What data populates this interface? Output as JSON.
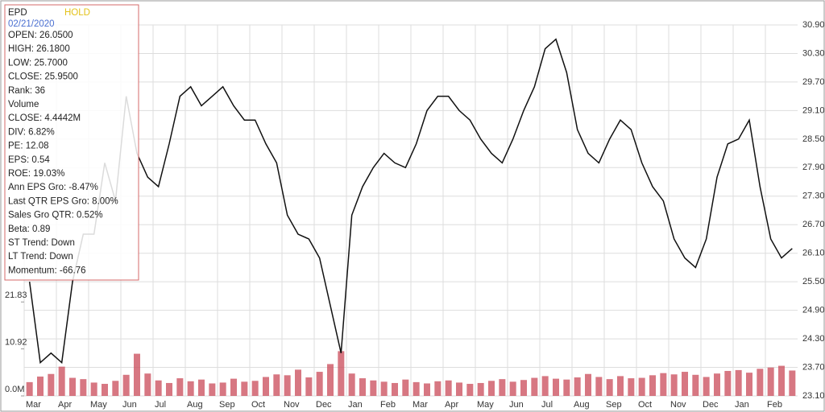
{
  "chart_data": {
    "type": "line",
    "categories": [
      "Mar",
      "Apr",
      "May",
      "Jun",
      "Jul",
      "Aug",
      "Sep",
      "Oct",
      "Nov",
      "Dec",
      "Jan",
      "Feb",
      "Mar",
      "Apr",
      "May",
      "Jun",
      "Jul",
      "Aug",
      "Sep",
      "Oct",
      "Nov",
      "Dec",
      "Jan",
      "Feb"
    ],
    "series": [
      {
        "name": "EPD",
        "color": "#111111",
        "values": [
          [
            25.5,
            23.8,
            24.0
          ],
          [
            23.8,
            25.5,
            26.5
          ],
          [
            26.5,
            28.0,
            27.2
          ],
          [
            29.4,
            28.2,
            27.7
          ],
          [
            27.5,
            28.4,
            29.4
          ],
          [
            29.6,
            29.2,
            29.4
          ],
          [
            29.6,
            29.2,
            28.9
          ],
          [
            28.9,
            28.4,
            28.0
          ],
          [
            26.9,
            26.5,
            26.4
          ],
          [
            26.0,
            25.0,
            24.0
          ],
          [
            26.9,
            27.5,
            27.9
          ],
          [
            28.2,
            28.0,
            27.9
          ],
          [
            28.4,
            29.1,
            29.4
          ],
          [
            29.4,
            29.1,
            28.9
          ],
          [
            28.5,
            28.2,
            28.0
          ],
          [
            28.5,
            29.1,
            29.6
          ],
          [
            30.4,
            30.6,
            29.9
          ],
          [
            28.7,
            28.2,
            28.0
          ],
          [
            28.5,
            28.9,
            28.7
          ],
          [
            28.0,
            27.5,
            27.2
          ],
          [
            26.4,
            26.0,
            25.8
          ],
          [
            26.4,
            27.7,
            28.4
          ],
          [
            28.5,
            28.9,
            27.5
          ],
          [
            26.4,
            26.0,
            26.2
          ]
        ]
      },
      {
        "name": "Volume",
        "color": "#c94a58",
        "axis": "y2",
        "values": [
          [
            3.2,
            4.5,
            5.1
          ],
          [
            6.8,
            4.2,
            3.9
          ],
          [
            3.1,
            2.8,
            3.5
          ],
          [
            4.9,
            9.8,
            5.2
          ],
          [
            3.6,
            3.0,
            4.1
          ],
          [
            3.4,
            3.8,
            2.9
          ],
          [
            3.1,
            4.0,
            3.3
          ],
          [
            3.5,
            4.4,
            5.0
          ],
          [
            4.8,
            6.1,
            4.3
          ],
          [
            5.6,
            7.4,
            10.4
          ],
          [
            5.2,
            4.1,
            3.6
          ],
          [
            3.3,
            3.0,
            3.8
          ],
          [
            3.2,
            2.9,
            3.4
          ],
          [
            3.6,
            3.1,
            2.8
          ],
          [
            3.0,
            3.5,
            3.9
          ],
          [
            3.3,
            3.7,
            4.2
          ],
          [
            4.6,
            4.0,
            3.8
          ],
          [
            4.3,
            5.1,
            4.4
          ],
          [
            3.9,
            4.6,
            4.1
          ],
          [
            4.2,
            4.8,
            5.3
          ],
          [
            5.0,
            5.6,
            4.9
          ],
          [
            4.4,
            5.2,
            5.8
          ],
          [
            6.0,
            5.4,
            6.3
          ],
          [
            6.6,
            7.0,
            5.9
          ]
        ]
      }
    ],
    "y2lim": [
      0,
      86.2
    ],
    "y2ticks": [
      {
        "value": 0,
        "label": "0.0M"
      },
      10.92,
      21.83
    ],
    "ylim": [
      23.1,
      30.9
    ],
    "yticks": [
      {
        "value": 23.1,
        "label": "23.10"
      },
      {
        "value": 23.7,
        "label": "23.70"
      },
      {
        "value": 24.3,
        "label": "24.30"
      },
      {
        "value": 24.9,
        "label": "24.90"
      },
      {
        "value": 25.5,
        "label": "25.50"
      },
      {
        "value": 26.1,
        "label": "26.10"
      },
      {
        "value": 26.7,
        "label": "26.70"
      },
      {
        "value": 27.3,
        "label": "27.30"
      },
      {
        "value": 27.9,
        "label": "27.90"
      },
      {
        "value": 28.5,
        "label": "28.50"
      },
      {
        "value": 29.1,
        "label": "29.10"
      },
      {
        "value": 29.7,
        "label": "29.70"
      },
      {
        "value": 30.3,
        "label": "30.30"
      },
      {
        "value": 30.9,
        "label": "30.90"
      }
    ],
    "grid": true
  },
  "panel": {
    "symbol": "EPD",
    "rating": "HOLD",
    "date": "02/21/2020",
    "lines": [
      "OPEN: 26.0500",
      "HIGH: 26.1800",
      "LOW: 25.7000",
      "CLOSE: 25.9500",
      "Rank: 36",
      "Volume",
      "CLOSE: 4.4442M",
      "DIV: 6.82%",
      "PE: 12.08",
      "EPS: 0.54",
      "ROE: 19.03%",
      "Ann EPS Gro: -8.47%",
      "Last QTR EPS Gro: 8.00%",
      "Sales Gro QTR: 0.52%",
      "Beta: 0.89",
      "ST Trend: Down",
      "LT Trend: Down",
      "Momentum: -66.76"
    ]
  }
}
